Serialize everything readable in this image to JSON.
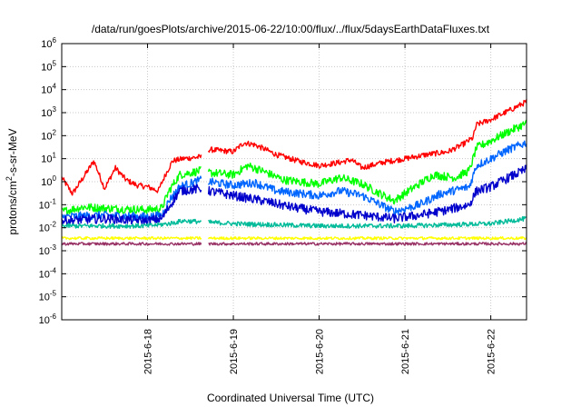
{
  "chart_data": {
    "type": "line",
    "title": "/data/run/goesPlots/archive/2015-06-22/10:00/flux/../flux/5daysEarthDataFluxes.txt",
    "xlabel": "Coordinated Universal Time (UTC)",
    "ylabel_parts": [
      "protons/cm",
      "2",
      "-s-sr-MeV"
    ],
    "x_ticks": [
      "2015-6-18",
      "2015-6-19",
      "2015-6-20",
      "2015-6-21",
      "2015-6-22"
    ],
    "xlim": [
      "2015-06-17 00:00",
      "2015-06-22 10:00"
    ],
    "y_scale": "log",
    "ylim": [
      1e-06,
      1000000.0
    ],
    "y_tick_exponents": [
      -6,
      -5,
      -4,
      -3,
      -2,
      -1,
      0,
      1,
      2,
      3,
      4,
      5,
      6
    ],
    "y_tick_base": "10",
    "grid": true,
    "gap": [
      "2015-06-18 15:00",
      "2015-06-18 17:00"
    ],
    "series": [
      {
        "color": "#ff0000",
        "noise": 0.12,
        "points": [
          [
            "2015-06-17 00:00",
            1.5
          ],
          [
            "2015-06-17 03:00",
            0.3
          ],
          [
            "2015-06-17 06:00",
            1.5
          ],
          [
            "2015-06-17 09:00",
            8
          ],
          [
            "2015-06-17 12:00",
            0.5
          ],
          [
            "2015-06-17 15:00",
            4
          ],
          [
            "2015-06-17 18:00",
            1.2
          ],
          [
            "2015-06-17 21:00",
            0.7
          ],
          [
            "2015-06-18 00:00",
            0.6
          ],
          [
            "2015-06-18 03:00",
            0.4
          ],
          [
            "2015-06-18 05:00",
            2
          ],
          [
            "2015-06-18 07:00",
            8
          ],
          [
            "2015-06-18 10:00",
            10
          ],
          [
            "2015-06-18 15:00",
            12
          ],
          [
            "2015-06-18 17:00",
            25
          ],
          [
            "2015-06-19 00:00",
            20
          ],
          [
            "2015-06-19 03:00",
            50
          ],
          [
            "2015-06-19 06:00",
            40
          ],
          [
            "2015-06-19 09:00",
            25
          ],
          [
            "2015-06-19 12:00",
            15
          ],
          [
            "2015-06-19 18:00",
            8
          ],
          [
            "2015-06-20 00:00",
            5
          ],
          [
            "2015-06-20 06:00",
            7
          ],
          [
            "2015-06-20 09:00",
            9
          ],
          [
            "2015-06-20 12:00",
            4
          ],
          [
            "2015-06-20 18:00",
            7
          ],
          [
            "2015-06-21 00:00",
            10
          ],
          [
            "2015-06-21 06:00",
            15
          ],
          [
            "2015-06-21 12:00",
            20
          ],
          [
            "2015-06-21 16:00",
            40
          ],
          [
            "2015-06-21 19:00",
            80
          ],
          [
            "2015-06-21 20:00",
            300
          ],
          [
            "2015-06-22 00:00",
            500
          ],
          [
            "2015-06-22 05:00",
            1200
          ],
          [
            "2015-06-22 10:00",
            3000
          ]
        ]
      },
      {
        "color": "#00ff00",
        "noise": 0.18,
        "points": [
          [
            "2015-06-17 00:00",
            0.05
          ],
          [
            "2015-06-17 06:00",
            0.08
          ],
          [
            "2015-06-17 12:00",
            0.07
          ],
          [
            "2015-06-18 00:00",
            0.06
          ],
          [
            "2015-06-18 04:00",
            0.07
          ],
          [
            "2015-06-18 06:00",
            0.4
          ],
          [
            "2015-06-18 09:00",
            2
          ],
          [
            "2015-06-18 15:00",
            3
          ],
          [
            "2015-06-18 17:00",
            2.5
          ],
          [
            "2015-06-19 00:00",
            2
          ],
          [
            "2015-06-19 04:00",
            5
          ],
          [
            "2015-06-19 08:00",
            3
          ],
          [
            "2015-06-19 14:00",
            1.2
          ],
          [
            "2015-06-20 00:00",
            0.8
          ],
          [
            "2015-06-20 06:00",
            1.5
          ],
          [
            "2015-06-20 12:00",
            0.8
          ],
          [
            "2015-06-20 18:00",
            0.25
          ],
          [
            "2015-06-20 21:00",
            0.15
          ],
          [
            "2015-06-21 02:00",
            0.5
          ],
          [
            "2015-06-21 08:00",
            2
          ],
          [
            "2015-06-21 14:00",
            1.5
          ],
          [
            "2015-06-21 18:00",
            3
          ],
          [
            "2015-06-21 20:00",
            30
          ],
          [
            "2015-06-22 00:00",
            60
          ],
          [
            "2015-06-22 05:00",
            150
          ],
          [
            "2015-06-22 10:00",
            350
          ]
        ]
      },
      {
        "color": "#0066ff",
        "noise": 0.18,
        "points": [
          [
            "2015-06-17 00:00",
            0.03
          ],
          [
            "2015-06-17 12:00",
            0.035
          ],
          [
            "2015-06-18 00:00",
            0.03
          ],
          [
            "2015-06-18 04:00",
            0.035
          ],
          [
            "2015-06-18 06:00",
            0.15
          ],
          [
            "2015-06-18 09:00",
            0.6
          ],
          [
            "2015-06-18 15:00",
            1.2
          ],
          [
            "2015-06-18 17:00",
            1
          ],
          [
            "2015-06-19 00:00",
            0.7
          ],
          [
            "2015-06-19 06:00",
            0.9
          ],
          [
            "2015-06-19 12:00",
            0.4
          ],
          [
            "2015-06-20 00:00",
            0.25
          ],
          [
            "2015-06-20 06:00",
            0.4
          ],
          [
            "2015-06-20 12:00",
            0.25
          ],
          [
            "2015-06-20 21:00",
            0.05
          ],
          [
            "2015-06-21 04:00",
            0.1
          ],
          [
            "2015-06-21 10:00",
            0.3
          ],
          [
            "2015-06-21 18:00",
            0.6
          ],
          [
            "2015-06-21 20:00",
            5
          ],
          [
            "2015-06-22 00:00",
            10
          ],
          [
            "2015-06-22 05:00",
            25
          ],
          [
            "2015-06-22 10:00",
            50
          ]
        ]
      },
      {
        "color": "#0000cc",
        "noise": 0.2,
        "points": [
          [
            "2015-06-17 00:00",
            0.02
          ],
          [
            "2015-06-17 12:00",
            0.025
          ],
          [
            "2015-06-18 00:00",
            0.02
          ],
          [
            "2015-06-18 04:00",
            0.025
          ],
          [
            "2015-06-18 06:00",
            0.08
          ],
          [
            "2015-06-18 09:00",
            0.4
          ],
          [
            "2015-06-18 15:00",
            0.5
          ],
          [
            "2015-06-18 17:00",
            0.4
          ],
          [
            "2015-06-19 00:00",
            0.25
          ],
          [
            "2015-06-19 08:00",
            0.15
          ],
          [
            "2015-06-19 16:00",
            0.08
          ],
          [
            "2015-06-20 00:00",
            0.05
          ],
          [
            "2015-06-20 12:00",
            0.035
          ],
          [
            "2015-06-20 21:00",
            0.025
          ],
          [
            "2015-06-21 04:00",
            0.035
          ],
          [
            "2015-06-21 12:00",
            0.06
          ],
          [
            "2015-06-21 18:00",
            0.1
          ],
          [
            "2015-06-21 20:00",
            0.4
          ],
          [
            "2015-06-22 00:00",
            0.6
          ],
          [
            "2015-06-22 05:00",
            1.5
          ],
          [
            "2015-06-22 10:00",
            3.5
          ]
        ]
      },
      {
        "color": "#00bb99",
        "noise": 0.1,
        "points": [
          [
            "2015-06-17 00:00",
            0.012
          ],
          [
            "2015-06-18 00:00",
            0.012
          ],
          [
            "2015-06-18 06:00",
            0.015
          ],
          [
            "2015-06-18 10:00",
            0.02
          ],
          [
            "2015-06-19 00:00",
            0.015
          ],
          [
            "2015-06-20 00:00",
            0.012
          ],
          [
            "2015-06-21 00:00",
            0.012
          ],
          [
            "2015-06-22 00:00",
            0.015
          ],
          [
            "2015-06-22 10:00",
            0.025
          ]
        ]
      },
      {
        "color": "#ffff00",
        "noise": 0.06,
        "points": [
          [
            "2015-06-17 00:00",
            0.0035
          ],
          [
            "2015-06-22 10:00",
            0.0035
          ]
        ]
      },
      {
        "color": "#993366",
        "noise": 0.06,
        "points": [
          [
            "2015-06-17 00:00",
            0.002
          ],
          [
            "2015-06-22 10:00",
            0.002
          ]
        ]
      }
    ]
  }
}
